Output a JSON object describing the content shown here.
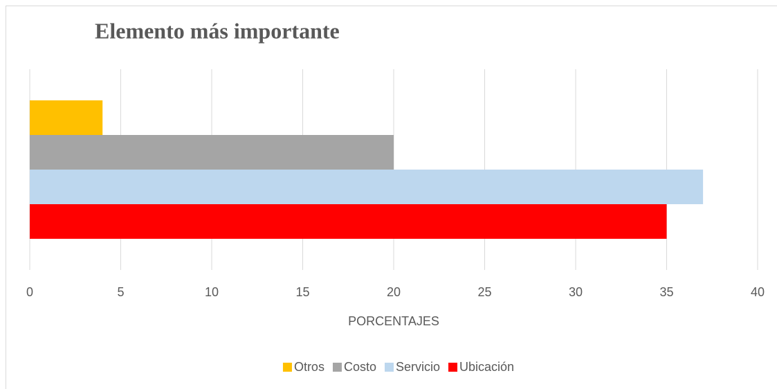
{
  "chart_data": {
    "type": "bar",
    "orientation": "horizontal",
    "title": "Elemento más importante",
    "categories": [
      null
    ],
    "series": [
      {
        "name": "Otros",
        "color": "#ffc000",
        "values": [
          4
        ]
      },
      {
        "name": "Costo",
        "color": "#a5a5a5",
        "values": [
          20
        ]
      },
      {
        "name": "Servicio",
        "color": "#bdd7ee",
        "values": [
          37
        ]
      },
      {
        "name": "Ubicación",
        "color": "#ff0000",
        "values": [
          35
        ]
      }
    ],
    "x_label": "PORCENTAJES",
    "xlim": [
      0,
      40
    ],
    "xticks": [
      0,
      5,
      10,
      15,
      20,
      25,
      30,
      35,
      40
    ],
    "grid": true,
    "legend": "bottom"
  }
}
